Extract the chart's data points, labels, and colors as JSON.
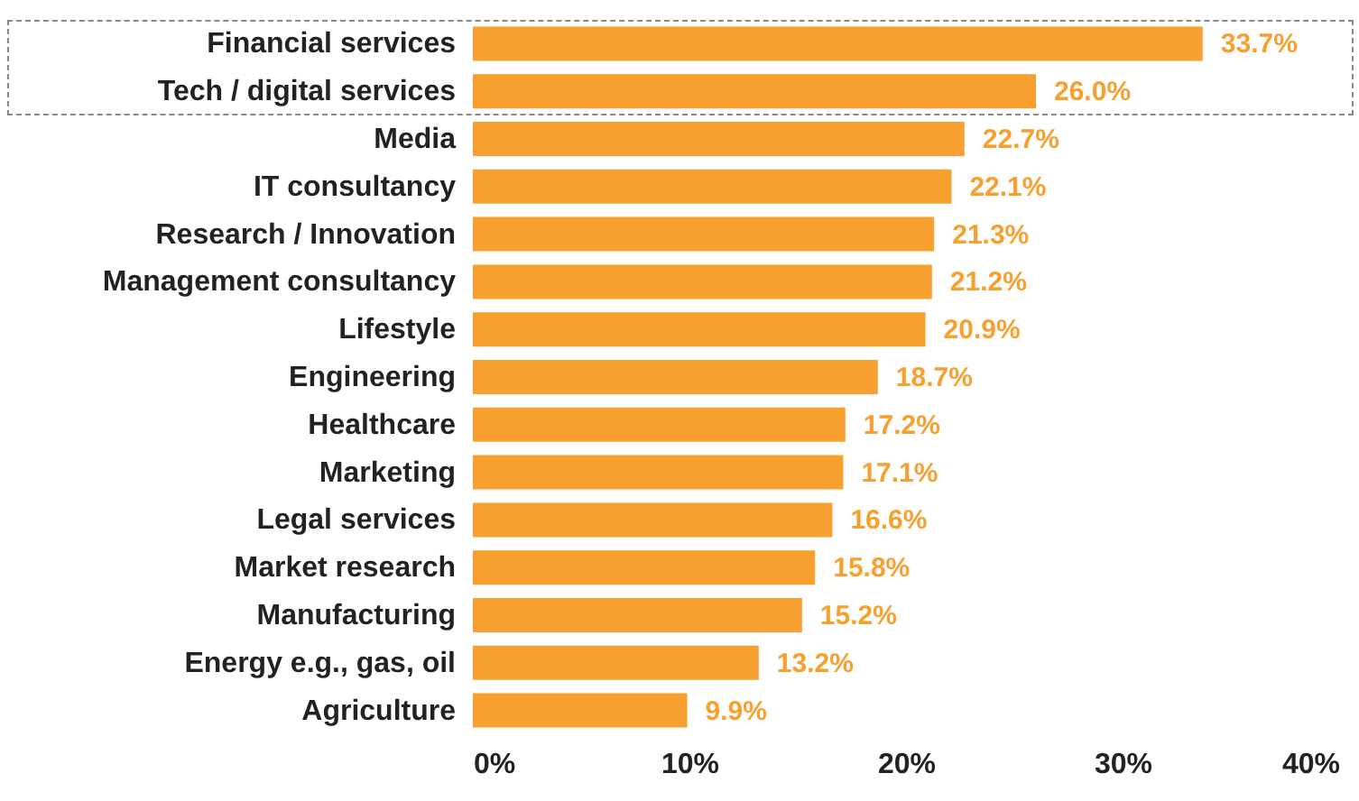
{
  "chart_data": {
    "type": "bar",
    "orientation": "horizontal",
    "categories": [
      "Financial services",
      "Tech / digital services",
      "Media",
      "IT consultancy",
      "Research / Innovation",
      "Management consultancy",
      "Lifestyle",
      "Engineering",
      "Healthcare",
      "Marketing",
      "Legal services",
      "Market research",
      "Manufacturing",
      "Energy e.g., gas, oil",
      "Agriculture"
    ],
    "values": [
      33.7,
      26.0,
      22.7,
      22.1,
      21.3,
      21.2,
      20.9,
      18.7,
      17.2,
      17.1,
      16.6,
      15.8,
      15.2,
      13.2,
      9.9
    ],
    "value_labels": [
      "33.7%",
      "26.0%",
      "22.7%",
      "22.1%",
      "21.3%",
      "21.2%",
      "20.9%",
      "18.7%",
      "17.2%",
      "17.1%",
      "16.6%",
      "15.8%",
      "15.2%",
      "13.2%",
      "9.9%"
    ],
    "color": "#f7a030",
    "xlim": [
      0,
      40
    ],
    "xticks": [
      {
        "value": 0,
        "label": "0%"
      },
      {
        "value": 10,
        "label": "10%"
      },
      {
        "value": 20,
        "label": "20%"
      },
      {
        "value": 30,
        "label": "30%"
      },
      {
        "value": 40,
        "label": "40%"
      }
    ],
    "grid": false
  }
}
